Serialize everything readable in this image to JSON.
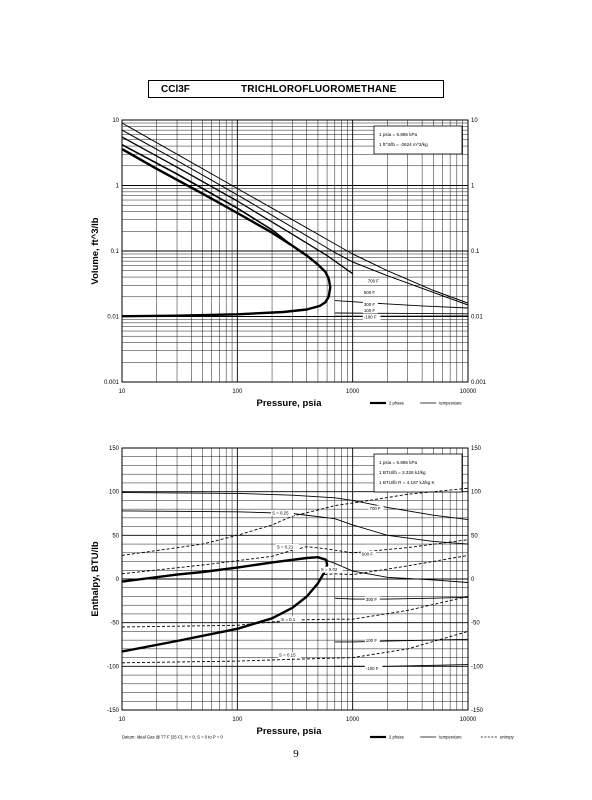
{
  "header": {
    "formula": "CCl3F",
    "name": "TRICHLOROFLUOROMETHANE"
  },
  "page_number": "9",
  "chart_data": [
    {
      "type": "line",
      "x_scale": "log",
      "y_scale": "log",
      "xlabel": "Pressure,  psia",
      "ylabel": "Volume,  ft^3/lb",
      "xlim": [
        10,
        10000
      ],
      "ylim": [
        0.001,
        10
      ],
      "x_ticks": [
        "10",
        "100",
        "1000",
        "10000"
      ],
      "y_ticks_left": [
        "0.001",
        "0.01",
        "0.1",
        "1",
        "10"
      ],
      "y_ticks_right": [
        "0.001",
        "0.01",
        "0.1",
        "1",
        "10"
      ],
      "y_tick_values": [
        0.001,
        0.01,
        0.1,
        1,
        10
      ],
      "grid": true,
      "conversion_note": [
        "1 psia  =  6.895 kPa",
        "1 ft^3/lb  =  .0624 m^3/kg"
      ],
      "legend": {
        "placement": "bottom-right",
        "entries": [
          "2 phase",
          "temperature"
        ]
      },
      "series": [
        {
          "name": "2 phase",
          "style": "two-phase",
          "width": 2.4,
          "points": [
            [
              10,
              0.0101
            ],
            [
              30,
              0.0103
            ],
            [
              100,
              0.0108
            ],
            [
              250,
              0.0117
            ],
            [
              400,
              0.0128
            ],
            [
              520,
              0.0145
            ],
            [
              580,
              0.0165
            ],
            [
              620,
              0.02
            ],
            [
              640,
              0.028
            ],
            [
              620,
              0.038
            ],
            [
              580,
              0.048
            ],
            [
              500,
              0.062
            ],
            [
              400,
              0.085
            ],
            [
              300,
              0.12
            ],
            [
              200,
              0.19
            ],
            [
              100,
              0.38
            ],
            [
              50,
              0.75
            ],
            [
              20,
              1.8
            ],
            [
              10,
              3.6
            ]
          ]
        },
        {
          "name": "",
          "style": "temperature",
          "width": 1.6,
          "points": [
            [
              10,
              4.2
            ],
            [
              30,
              1.5
            ],
            [
              100,
              0.45
            ],
            [
              200,
              0.21
            ],
            [
              300,
              0.12
            ]
          ]
        },
        {
          "name": "",
          "style": "temperature",
          "width": 1.3,
          "points": [
            [
              10,
              5.5
            ],
            [
              30,
              1.9
            ],
            [
              100,
              0.58
            ],
            [
              300,
              0.18
            ],
            [
              600,
              0.085
            ],
            [
              1000,
              0.045
            ]
          ]
        },
        {
          "name": "",
          "style": "temperature",
          "width": 1.0,
          "points": [
            [
              10,
              7
            ],
            [
              30,
              2.4
            ],
            [
              100,
              0.72
            ],
            [
              300,
              0.23
            ],
            [
              700,
              0.095
            ],
            [
              1000,
              0.068
            ],
            [
              2000,
              0.042
            ],
            [
              10000,
              0.015
            ]
          ]
        },
        {
          "name": "",
          "style": "temperature",
          "width": 1.0,
          "points": [
            [
              10,
              9
            ],
            [
              30,
              3
            ],
            [
              100,
              0.9
            ],
            [
              300,
              0.3
            ],
            [
              600,
              0.15
            ],
            [
              1000,
              0.09
            ],
            [
              2000,
              0.05
            ],
            [
              5000,
              0.025
            ],
            [
              10000,
              0.016
            ]
          ]
        },
        {
          "name": "",
          "style": "temperature",
          "width": 0.9,
          "points": [
            [
              700,
              0.0175
            ],
            [
              1500,
              0.016
            ],
            [
              4000,
              0.0145
            ],
            [
              10000,
              0.0135
            ]
          ]
        },
        {
          "name": "",
          "style": "temperature",
          "width": 0.9,
          "points": [
            [
              700,
              0.0113
            ],
            [
              2000,
              0.0112
            ],
            [
              10000,
              0.011
            ]
          ]
        },
        {
          "name": "",
          "style": "temperature",
          "width": 0.9,
          "points": [
            [
              700,
              0.0101
            ],
            [
              2000,
              0.0101
            ],
            [
              10000,
              0.0102
            ]
          ]
        }
      ],
      "annotations": [
        {
          "text": "700 F",
          "x": 1350,
          "y": 0.033
        },
        {
          "text": "500 F",
          "x": 1250,
          "y": 0.022
        },
        {
          "text": "300 F",
          "x": 1250,
          "y": 0.0145
        },
        {
          "text": "100 F",
          "x": 1250,
          "y": 0.0118
        },
        {
          "text": "-100 F",
          "x": 1250,
          "y": 0.0093
        }
      ]
    },
    {
      "type": "line",
      "x_scale": "log",
      "y_scale": "linear",
      "xlabel": "Pressure,  psia",
      "ylabel": "Enthalpy,  BTU/lb",
      "xlim": [
        10,
        10000
      ],
      "ylim": [
        -150,
        150
      ],
      "x_ticks": [
        "10",
        "100",
        "1000",
        "10000"
      ],
      "y_ticks_left": [
        "-150",
        "-100",
        "-50",
        "0",
        "50",
        "100",
        "150"
      ],
      "y_ticks_right": [
        "-150",
        "-100",
        "-50",
        "0",
        "50",
        "100",
        "150"
      ],
      "y_tick_values": [
        -150,
        -100,
        -50,
        0,
        50,
        100,
        150
      ],
      "grid": true,
      "conversion_note": [
        "1 psia  =  6.895 kPa",
        "1 BTU/lb  =  2.326 kJ/kg",
        "1 BTU/lb R  =  4.187 kJ/kg K"
      ],
      "datum_note": "Datum: Ideal Gas @ 77 F (25 C),  H = 0,  S = 0 to P = 0",
      "legend": {
        "placement": "bottom-right",
        "entries": [
          "2 phase",
          "temperature",
          "entropy"
        ]
      },
      "series": [
        {
          "name": "2 phase",
          "style": "two-phase",
          "width": 2.4,
          "points": [
            [
              10,
              -83
            ],
            [
              30,
              -71
            ],
            [
              100,
              -57
            ],
            [
              200,
              -45
            ],
            [
              300,
              -33
            ],
            [
              400,
              -20
            ],
            [
              500,
              -5
            ],
            [
              570,
              8
            ],
            [
              600,
              16
            ],
            [
              590,
              22
            ],
            [
              500,
              25
            ],
            [
              400,
              24
            ],
            [
              200,
              19
            ],
            [
              100,
              13
            ],
            [
              50,
              8
            ],
            [
              30,
              5
            ],
            [
              10,
              -3
            ]
          ]
        },
        {
          "name": "",
          "style": "temperature",
          "width": 0.9,
          "points": [
            [
              10,
              99
            ],
            [
              100,
              98
            ],
            [
              300,
              96
            ],
            [
              700,
              93
            ],
            [
              1000,
              90
            ],
            [
              2000,
              82
            ],
            [
              5000,
              73
            ],
            [
              10000,
              68
            ]
          ]
        },
        {
          "name": "",
          "style": "temperature",
          "width": 0.9,
          "points": [
            [
              10,
              78
            ],
            [
              100,
              77
            ],
            [
              300,
              75
            ],
            [
              700,
              69
            ],
            [
              1000,
              62
            ],
            [
              2000,
              50
            ],
            [
              5000,
              43
            ],
            [
              10000,
              40
            ]
          ]
        },
        {
          "name": "",
          "style": "temperature",
          "width": 0.9,
          "points": [
            [
              550,
              23
            ],
            [
              700,
              18
            ],
            [
              1000,
              9
            ],
            [
              2000,
              2
            ],
            [
              5000,
              -1
            ],
            [
              10000,
              -4
            ]
          ]
        },
        {
          "name": "",
          "style": "temperature",
          "width": 0.9,
          "points": [
            [
              700,
              -22
            ],
            [
              1000,
              -23
            ],
            [
              2000,
              -23
            ],
            [
              5000,
              -22
            ],
            [
              10000,
              -21
            ]
          ]
        },
        {
          "name": "",
          "style": "temperature",
          "width": 0.9,
          "points": [
            [
              700,
              -72
            ],
            [
              1000,
              -72
            ],
            [
              2000,
              -71
            ],
            [
              5000,
              -70
            ],
            [
              10000,
              -69
            ]
          ]
        },
        {
          "name": "",
          "style": "temperature",
          "width": 0.9,
          "points": [
            [
              700,
              -100
            ],
            [
              2000,
              -100
            ],
            [
              10000,
              -98
            ]
          ]
        },
        {
          "name": "",
          "style": "entropy",
          "width": 0.9,
          "points": [
            [
              10,
              27
            ],
            [
              50,
              40
            ],
            [
              100,
              50
            ],
            [
              200,
              62
            ],
            [
              300,
              72
            ],
            [
              500,
              79
            ],
            [
              700,
              84
            ],
            [
              1000,
              87
            ],
            [
              3000,
              97
            ],
            [
              10000,
              104
            ]
          ]
        },
        {
          "name": "",
          "style": "entropy",
          "width": 0.9,
          "points": [
            [
              10,
              6
            ],
            [
              50,
              16
            ],
            [
              100,
              21
            ],
            [
              200,
              26
            ],
            [
              300,
              33
            ],
            [
              400,
              37
            ],
            [
              550,
              35
            ],
            [
              700,
              33
            ],
            [
              1000,
              30
            ],
            [
              3000,
              36
            ],
            [
              10000,
              45
            ]
          ]
        },
        {
          "name": "",
          "style": "entropy",
          "width": 0.9,
          "points": [
            [
              570,
              5
            ],
            [
              700,
              6
            ],
            [
              1000,
              5
            ],
            [
              3000,
              15
            ],
            [
              10000,
              27
            ]
          ]
        },
        {
          "name": "",
          "style": "entropy",
          "width": 0.9,
          "points": [
            [
              10,
              -55
            ],
            [
              100,
              -53
            ],
            [
              300,
              -47
            ],
            [
              700,
              -46
            ],
            [
              1000,
              -46
            ],
            [
              3000,
              -36
            ],
            [
              10000,
              -20
            ]
          ]
        },
        {
          "name": "",
          "style": "entropy",
          "width": 0.9,
          "points": [
            [
              10,
              -96
            ],
            [
              100,
              -94
            ],
            [
              300,
              -92
            ],
            [
              1000,
              -90
            ],
            [
              3000,
              -80
            ],
            [
              10000,
              -60
            ]
          ]
        }
      ],
      "annotations": [
        {
          "text": "S = 0.25",
          "x": 200,
          "y": 74
        },
        {
          "text": "S = 0.21",
          "x": 220,
          "y": 35
        },
        {
          "text": "S = 0.02",
          "x": 530,
          "y": 9
        },
        {
          "text": "S = 0.1",
          "x": 240,
          "y": -48
        },
        {
          "text": "S = 0.15",
          "x": 230,
          "y": -89
        },
        {
          "text": "700 F",
          "x": 1400,
          "y": 79
        },
        {
          "text": "500 F",
          "x": 1200,
          "y": 27
        },
        {
          "text": "300 F",
          "x": 1300,
          "y": -25
        },
        {
          "text": "100 F",
          "x": 1300,
          "y": -72
        },
        {
          "text": "-100 F",
          "x": 1300,
          "y": -104
        }
      ]
    }
  ]
}
